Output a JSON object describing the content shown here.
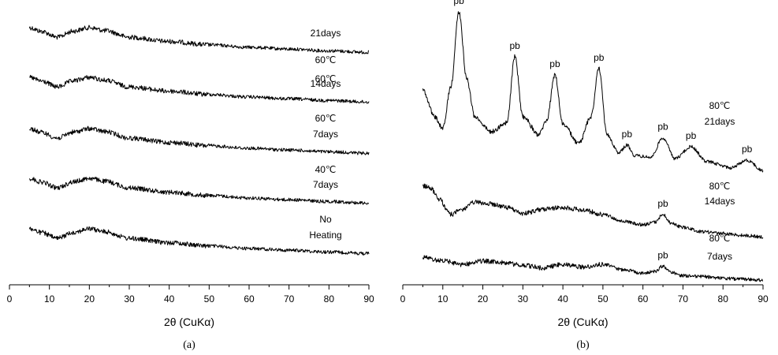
{
  "chart_data": [
    {
      "type": "line",
      "panel": "(a)",
      "xlabel": "2θ (CuKα)",
      "ylabel": "",
      "xlim": [
        0,
        90
      ],
      "xticks": [
        0,
        10,
        20,
        30,
        40,
        50,
        60,
        70,
        80,
        90
      ],
      "grid": false,
      "series": [
        {
          "label_line1": "60℃",
          "label_line2": "21days",
          "x": [
            5,
            8,
            12,
            16,
            20,
            24,
            30,
            40,
            50,
            60,
            70,
            80,
            90
          ],
          "y": [
            1.0,
            0.85,
            0.62,
            0.86,
            1.0,
            0.88,
            0.62,
            0.45,
            0.32,
            0.22,
            0.15,
            0.08,
            0.02
          ]
        },
        {
          "label_line1": "60℃",
          "label_line2": "14days",
          "x": [
            5,
            8,
            12,
            16,
            20,
            24,
            30,
            40,
            50,
            60,
            70,
            80,
            90
          ],
          "y": [
            1.0,
            0.85,
            0.62,
            0.86,
            1.0,
            0.88,
            0.62,
            0.45,
            0.32,
            0.22,
            0.15,
            0.08,
            0.02
          ]
        },
        {
          "label_line1": "60℃",
          "label_line2": "7days",
          "x": [
            5,
            8,
            12,
            16,
            20,
            24,
            30,
            40,
            50,
            60,
            70,
            80,
            90
          ],
          "y": [
            1.0,
            0.85,
            0.62,
            0.86,
            1.0,
            0.88,
            0.62,
            0.45,
            0.32,
            0.22,
            0.15,
            0.08,
            0.02
          ]
        },
        {
          "label_line1": "40℃",
          "label_line2": "7days",
          "x": [
            5,
            8,
            12,
            16,
            20,
            24,
            30,
            40,
            50,
            60,
            70,
            80,
            90
          ],
          "y": [
            1.0,
            0.85,
            0.62,
            0.86,
            1.0,
            0.88,
            0.62,
            0.45,
            0.32,
            0.22,
            0.15,
            0.08,
            0.02
          ]
        },
        {
          "label_line1": "No",
          "label_line2": "Heating",
          "x": [
            5,
            8,
            12,
            16,
            20,
            24,
            30,
            40,
            50,
            60,
            70,
            80,
            90
          ],
          "y": [
            1.0,
            0.85,
            0.62,
            0.86,
            1.0,
            0.88,
            0.62,
            0.45,
            0.32,
            0.22,
            0.15,
            0.08,
            0.02
          ]
        }
      ]
    },
    {
      "type": "line",
      "panel": "(b)",
      "xlabel": "2θ (CuKα)",
      "ylabel": "",
      "xlim": [
        0,
        90
      ],
      "xticks": [
        0,
        10,
        20,
        30,
        40,
        50,
        60,
        70,
        80,
        90
      ],
      "grid": false,
      "series": [
        {
          "label_line1": "80℃",
          "label_line2": "21days",
          "x": [
            5,
            8,
            10,
            12,
            14,
            16,
            18,
            22,
            26,
            28,
            30,
            34,
            36,
            38,
            40,
            44,
            47,
            49,
            51,
            54,
            56,
            58,
            62,
            65,
            68,
            72,
            76,
            82,
            86,
            90
          ],
          "y": [
            0.48,
            0.3,
            0.22,
            0.5,
            1.0,
            0.55,
            0.3,
            0.2,
            0.26,
            0.7,
            0.3,
            0.18,
            0.28,
            0.58,
            0.25,
            0.12,
            0.3,
            0.62,
            0.18,
            0.06,
            0.11,
            0.04,
            0.03,
            0.16,
            0.02,
            0.1,
            0.0,
            -0.04,
            0.01,
            -0.06
          ]
        },
        {
          "label_line1": "80℃",
          "label_line2": "14days",
          "x": [
            5,
            7,
            9,
            12,
            15,
            18,
            22,
            26,
            30,
            35,
            40,
            45,
            50,
            55,
            60,
            63,
            65,
            67,
            70,
            75,
            80,
            85,
            90
          ],
          "y": [
            0.45,
            0.42,
            0.3,
            0.12,
            0.18,
            0.26,
            0.24,
            0.2,
            0.13,
            0.18,
            0.2,
            0.17,
            0.12,
            0.04,
            0.0,
            0.03,
            0.12,
            0.02,
            -0.03,
            -0.08,
            -0.1,
            -0.12,
            -0.14
          ]
        },
        {
          "label_line1": "80℃",
          "label_line2": "7days",
          "x": [
            5,
            10,
            15,
            20,
            25,
            30,
            35,
            40,
            45,
            50,
            55,
            60,
            63,
            65,
            67,
            70,
            75,
            80,
            85,
            90
          ],
          "y": [
            0.16,
            0.12,
            0.08,
            0.12,
            0.1,
            0.07,
            0.04,
            0.08,
            0.05,
            0.08,
            0.02,
            -0.02,
            0.0,
            0.06,
            -0.01,
            -0.05,
            -0.06,
            -0.08,
            -0.09,
            -0.1
          ]
        }
      ],
      "annotations": [
        {
          "text": "pb",
          "x": 14,
          "series": 0
        },
        {
          "text": "pb",
          "x": 28,
          "series": 0
        },
        {
          "text": "pb",
          "x": 38,
          "series": 0
        },
        {
          "text": "pb",
          "x": 49,
          "series": 0
        },
        {
          "text": "pb",
          "x": 56,
          "series": 0
        },
        {
          "text": "pb",
          "x": 65,
          "series": 0
        },
        {
          "text": "pb",
          "x": 72,
          "series": 0
        },
        {
          "text": "pb",
          "x": 86,
          "series": 0
        },
        {
          "text": "pb",
          "x": 65,
          "series": 1
        },
        {
          "text": "pb",
          "x": 65,
          "series": 2
        }
      ]
    }
  ]
}
